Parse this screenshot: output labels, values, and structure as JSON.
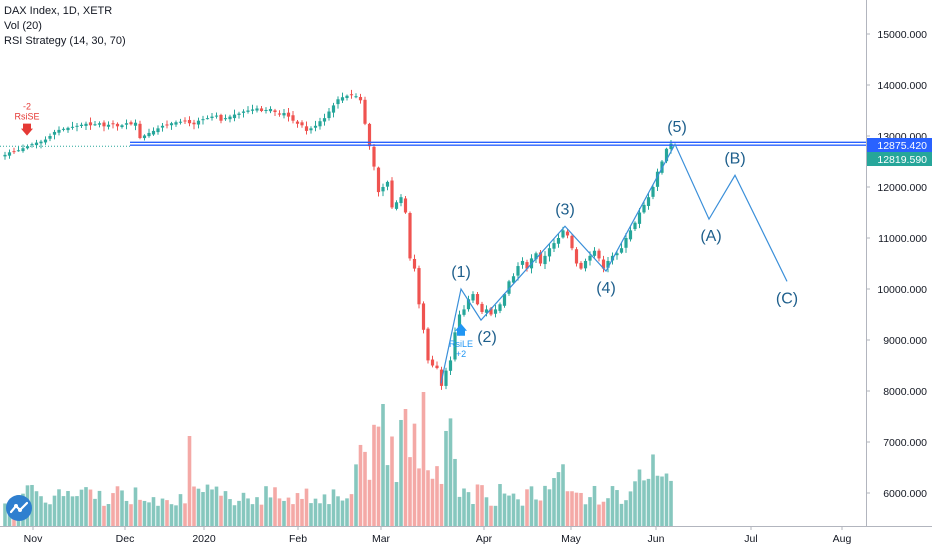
{
  "legend": {
    "symbol": "DAX Index, 1D, XETR",
    "volume": "Vol (20)",
    "strategy": "RSI Strategy (14, 30, 70)"
  },
  "price_tags": {
    "upper": "12875.420",
    "lower": "12819.590"
  },
  "signals": {
    "short_qty": "-2",
    "short_label": "RsiSE",
    "long_label": "RsiLE",
    "long_qty": "+2"
  },
  "colors": {
    "up": "#26a69a",
    "down": "#ef5350",
    "vol_up": "#86c7be",
    "vol_down": "#f4a9a6",
    "wave": "#3a8fd9",
    "wave_text": "#1e5f8c",
    "hline": "#2962ff",
    "tag_upper": "#2962ff",
    "tag_lower": "#26a69a",
    "signal_short": "#e53935",
    "signal_long": "#2196f3",
    "logo": "#2f7fcf"
  },
  "chart_data": {
    "type": "candlestick",
    "y_ticks": [
      6000,
      7000,
      8000,
      9000,
      10000,
      11000,
      12000,
      13000,
      14000,
      15000
    ],
    "y_tick_labels": [
      "6000.000",
      "7000.000",
      "8000.000",
      "9000.000",
      "10000.000",
      "11000.000",
      "12000.000",
      "13000.000",
      "14000.000",
      "15000.000"
    ],
    "ylim": [
      5500,
      15650
    ],
    "x_tick_labels": [
      "Nov",
      "Dec",
      "2020",
      "Feb",
      "Mar",
      "Apr",
      "May",
      "Jun",
      "Jul",
      "Aug"
    ],
    "horizontal_lines": [
      12875.42,
      12819.59
    ],
    "price_series": {
      "note": "daily close, Oct 2019 - Jun 2020",
      "values": [
        12630,
        12680,
        12700,
        12720,
        12760,
        12800,
        12840,
        12870,
        12890,
        12930,
        13000,
        13080,
        13120,
        13140,
        13160,
        13180,
        13200,
        13220,
        13240,
        13210,
        13230,
        13250,
        13190,
        13220,
        13240,
        13190,
        13210,
        13250,
        13230,
        13260,
        12960,
        13010,
        13060,
        13100,
        13150,
        13200,
        13220,
        13250,
        13270,
        13280,
        13290,
        13250,
        13230,
        13300,
        13330,
        13350,
        13380,
        13400,
        13300,
        13350,
        13380,
        13420,
        13440,
        13480,
        13500,
        13520,
        13540,
        13490,
        13510,
        13530,
        13470,
        13420,
        13450,
        13380,
        13300,
        13240,
        13210,
        13100,
        13150,
        13200,
        13290,
        13350,
        13480,
        13600,
        13720,
        13760,
        13790,
        13800,
        13780,
        13700,
        13240,
        12800,
        12400,
        11900,
        12000,
        12100,
        11600,
        11700,
        11800,
        11500,
        10600,
        10400,
        9700,
        9200,
        8600,
        8500,
        8450,
        8100,
        8400,
        8600,
        9150,
        9500,
        9600,
        9800,
        9900,
        9700,
        9550,
        9600,
        9500,
        9600,
        9700,
        9900,
        10150,
        10250,
        10450,
        10550,
        10400,
        10600,
        10700,
        10500,
        10650,
        10800,
        10900,
        11000,
        11150,
        11050,
        10800,
        10500,
        10400,
        10550,
        10650,
        10750,
        10600,
        10400,
        10550,
        10650,
        10700,
        10800,
        11000,
        11150,
        11300,
        11500,
        11650,
        11800,
        12000,
        12300,
        12500,
        12750,
        12850
      ]
    },
    "waves": [
      {
        "name": "(1)",
        "price": 10000
      },
      {
        "name": "(2)",
        "price": 9390
      },
      {
        "name": "(3)",
        "price": 11230
      },
      {
        "name": "(4)",
        "price": 10350
      },
      {
        "name": "(5)",
        "price": 12840
      },
      {
        "name": "(A)",
        "price": 11370
      },
      {
        "name": "(B)",
        "price": 12230
      },
      {
        "name": "(C)",
        "price": 10150
      }
    ]
  }
}
